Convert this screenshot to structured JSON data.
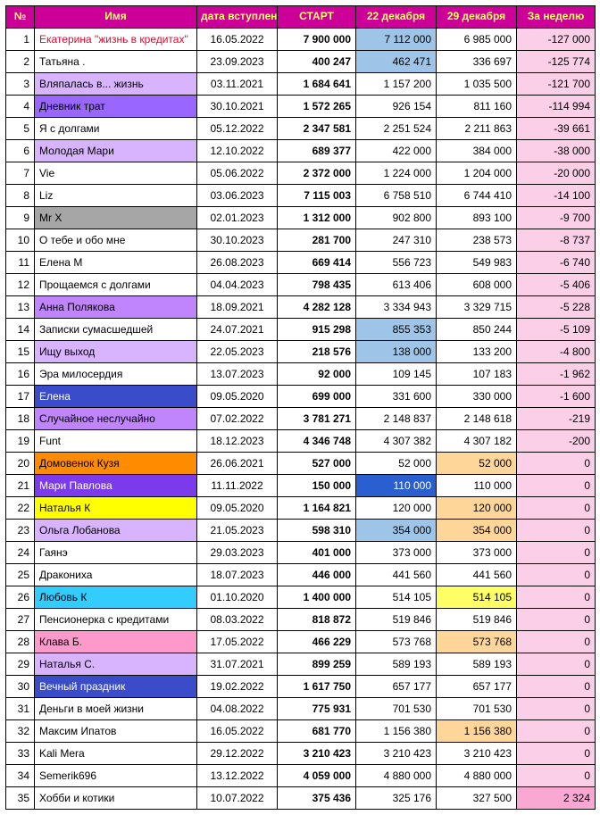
{
  "header": {
    "num": "№",
    "name": "Имя",
    "date": "дата вступления",
    "start": "СТАРТ",
    "d22": "22 декабря",
    "d29": "29 декабря",
    "week": "За неделю",
    "bg": "#cc0099",
    "fg": "#ffff66"
  },
  "palette": {
    "week_col_bg": "#fbcfe8",
    "hl_blue_light": "#9ec5e8",
    "hl_blue_med": "#5b8fd6",
    "hl_blue_strong": "#2a5fd0",
    "hl_orange": "#ffd699",
    "hl_yellow": "#ffff66",
    "hl_pink": "#f9a8d4"
  },
  "name_colors": {
    "red_text": "#e2062c",
    "lav_light": "#d8b4fe",
    "lav_med": "#c084fc",
    "violet": "#9966ff",
    "violet_dark": "#7c3aed",
    "blue_royal": "#3b4cca",
    "gray": "#a6a6a6",
    "orange": "#ff8c00",
    "yellow": "#ffff00",
    "cyan": "#33ccff",
    "pink": "#ff99cc"
  },
  "rows": [
    {
      "n": 1,
      "name": "Екатерина \"жизнь в кредитах\"",
      "name_bg": null,
      "name_fg": "#e2062c",
      "date": "16.05.2022",
      "start": "7 900 000",
      "d22": "7 112 000",
      "d22_bg": "#9ec5e8",
      "d29": "6 985 000",
      "d29_bg": null,
      "week": "-127 000"
    },
    {
      "n": 2,
      "name": "Татьяна .",
      "name_bg": null,
      "name_fg": null,
      "date": "23.09.2023",
      "start": "400 247",
      "d22": "462 471",
      "d22_bg": "#9ec5e8",
      "d29": "336 697",
      "d29_bg": null,
      "week": "-125 774"
    },
    {
      "n": 3,
      "name": "Вляпалась в... жизнь",
      "name_bg": "#d8b4fe",
      "name_fg": null,
      "date": "03.11.2021",
      "start": "1 684 641",
      "d22": "1 157 200",
      "d22_bg": null,
      "d29": "1 035 500",
      "d29_bg": null,
      "week": "-121 700"
    },
    {
      "n": 4,
      "name": "Дневник трат",
      "name_bg": "#9966ff",
      "name_fg": null,
      "date": "30.10.2021",
      "start": "1 572 265",
      "d22": "926 154",
      "d22_bg": null,
      "d29": "811 160",
      "d29_bg": null,
      "week": "-114 994"
    },
    {
      "n": 5,
      "name": "Я с долгами",
      "name_bg": null,
      "name_fg": null,
      "date": "05.12.2022",
      "start": "2 347 581",
      "d22": "2 251 524",
      "d22_bg": null,
      "d29": "2 211 863",
      "d29_bg": null,
      "week": "-39 661"
    },
    {
      "n": 6,
      "name": "Молодая Мари",
      "name_bg": "#d8b4fe",
      "name_fg": null,
      "date": "12.10.2022",
      "start": "689 377",
      "d22": "422 000",
      "d22_bg": null,
      "d29": "384 000",
      "d29_bg": null,
      "week": "-38 000"
    },
    {
      "n": 7,
      "name": "Vie",
      "name_bg": null,
      "name_fg": null,
      "date": "05.06.2022",
      "start": "2 372 000",
      "d22": "1 224 000",
      "d22_bg": null,
      "d29": "1 204 000",
      "d29_bg": null,
      "week": "-20 000"
    },
    {
      "n": 8,
      "name": "Liz",
      "name_bg": null,
      "name_fg": null,
      "date": "03.06.2023",
      "start": "7 115 003",
      "d22": "6 758 510",
      "d22_bg": null,
      "d29": "6 744 410",
      "d29_bg": null,
      "week": "-14 100"
    },
    {
      "n": 9,
      "name": "Mr X",
      "name_bg": "#a6a6a6",
      "name_fg": null,
      "date": "02.01.2023",
      "start": "1 312 000",
      "d22": "902 800",
      "d22_bg": null,
      "d29": "893 100",
      "d29_bg": null,
      "week": "-9 700"
    },
    {
      "n": 10,
      "name": "О тебе и обо мне",
      "name_bg": null,
      "name_fg": null,
      "date": "30.10.2023",
      "start": "281 700",
      "d22": "247 310",
      "d22_bg": null,
      "d29": "238 573",
      "d29_bg": null,
      "week": "-8 737"
    },
    {
      "n": 11,
      "name": "Елена М",
      "name_bg": null,
      "name_fg": null,
      "date": "26.08.2023",
      "start": "669 414",
      "d22": "556 723",
      "d22_bg": null,
      "d29": "549 983",
      "d29_bg": null,
      "week": "-6 740"
    },
    {
      "n": 12,
      "name": "Прощаемся с долгами",
      "name_bg": null,
      "name_fg": null,
      "date": "04.04.2023",
      "start": "798 435",
      "d22": "613 406",
      "d22_bg": null,
      "d29": "608 000",
      "d29_bg": null,
      "week": "-5 406"
    },
    {
      "n": 13,
      "name": "Анна Полякова",
      "name_bg": "#c084fc",
      "name_fg": null,
      "date": "18.09.2021",
      "start": "4 282 128",
      "d22": "3 334 943",
      "d22_bg": null,
      "d29": "3 329 715",
      "d29_bg": null,
      "week": "-5 228"
    },
    {
      "n": 14,
      "name": "Записки сумасшедшей",
      "name_bg": null,
      "name_fg": null,
      "date": "24.07.2021",
      "start": "915 298",
      "d22": "855 353",
      "d22_bg": "#9ec5e8",
      "d29": "850 244",
      "d29_bg": null,
      "week": "-5 109"
    },
    {
      "n": 15,
      "name": "Ищу выход",
      "name_bg": "#d8b4fe",
      "name_fg": null,
      "date": "22.05.2023",
      "start": "218 576",
      "d22": "138 000",
      "d22_bg": "#9ec5e8",
      "d29": "133 200",
      "d29_bg": null,
      "week": "-4 800"
    },
    {
      "n": 16,
      "name": "Эра милосердия",
      "name_bg": null,
      "name_fg": null,
      "date": "13.07.2023",
      "start": "92 000",
      "d22": "109 145",
      "d22_bg": null,
      "d29": "107 183",
      "d29_bg": null,
      "week": "-1 962"
    },
    {
      "n": 17,
      "name": "Елена",
      "name_bg": "#3b4cca",
      "name_fg": "#ffffff",
      "date": "09.05.2020",
      "start": "699 000",
      "d22": "331 600",
      "d22_bg": null,
      "d29": "330 000",
      "d29_bg": null,
      "week": "-1 600"
    },
    {
      "n": 18,
      "name": "Случайное неслучайно",
      "name_bg": "#c084fc",
      "name_fg": null,
      "date": "07.02.2022",
      "start": "3 781 271",
      "d22": "2 148 837",
      "d22_bg": null,
      "d29": "2 148 618",
      "d29_bg": null,
      "week": "-219"
    },
    {
      "n": 19,
      "name": "Funt",
      "name_bg": null,
      "name_fg": null,
      "date": "18.12.2023",
      "start": "4 346 748",
      "d22": "4 307 382",
      "d22_bg": null,
      "d29": "4 307 182",
      "d29_bg": null,
      "week": "-200"
    },
    {
      "n": 20,
      "name": "Домовенок Кузя",
      "name_bg": "#ff8c00",
      "name_fg": null,
      "date": "26.06.2021",
      "start": "527 000",
      "d22": "52 000",
      "d22_bg": null,
      "d29": "52 000",
      "d29_bg": "#ffd699",
      "week": "0"
    },
    {
      "n": 21,
      "name": "Мари Павлова",
      "name_bg": "#7c3aed",
      "name_fg": "#ffffff",
      "date": "11.11.2022",
      "start": "150 000",
      "d22": "110 000",
      "d22_bg": "#2a5fd0",
      "d22_fg": "#ffffff",
      "d29": "110 000",
      "d29_bg": null,
      "week": "0"
    },
    {
      "n": 22,
      "name": "Наталья К",
      "name_bg": "#ffff00",
      "name_fg": null,
      "date": "09.05.2020",
      "start": "1 164 821",
      "d22": "120 000",
      "d22_bg": null,
      "d29": "120 000",
      "d29_bg": "#ffd699",
      "week": "0"
    },
    {
      "n": 23,
      "name": "Ольга Лобанова",
      "name_bg": "#d8b4fe",
      "name_fg": null,
      "date": "21.05.2023",
      "start": "598 310",
      "d22": "354 000",
      "d22_bg": "#9ec5e8",
      "d29": "354 000",
      "d29_bg": "#ffd699",
      "week": "0"
    },
    {
      "n": 24,
      "name": "Гаянэ",
      "name_bg": null,
      "name_fg": null,
      "date": "29.03.2023",
      "start": "401 000",
      "d22": "373 000",
      "d22_bg": null,
      "d29": "373 000",
      "d29_bg": null,
      "week": "0"
    },
    {
      "n": 25,
      "name": "Дракониха",
      "name_bg": null,
      "name_fg": null,
      "date": "18.07.2023",
      "start": "446 000",
      "d22": "441 560",
      "d22_bg": null,
      "d29": "441 560",
      "d29_bg": null,
      "week": "0"
    },
    {
      "n": 26,
      "name": "Любовь К",
      "name_bg": "#33ccff",
      "name_fg": null,
      "date": "01.10.2020",
      "start": "1 400 000",
      "d22": "514 105",
      "d22_bg": null,
      "d29": "514 105",
      "d29_bg": "#ffff66",
      "week": "0"
    },
    {
      "n": 27,
      "name": "Пенсионерка с кредитами",
      "name_bg": null,
      "name_fg": null,
      "date": "08.03.2022",
      "start": "818 872",
      "d22": "519 846",
      "d22_bg": null,
      "d29": "519 846",
      "d29_bg": null,
      "week": "0"
    },
    {
      "n": 28,
      "name": "Клава Б.",
      "name_bg": "#ff99cc",
      "name_fg": null,
      "date": "17.05.2022",
      "start": "466 229",
      "d22": "573 768",
      "d22_bg": null,
      "d29": "573 768",
      "d29_bg": "#ffd699",
      "week": "0"
    },
    {
      "n": 29,
      "name": "Наталья С.",
      "name_bg": "#d8b4fe",
      "name_fg": null,
      "date": "31.07.2021",
      "start": "899 259",
      "d22": "589 193",
      "d22_bg": null,
      "d29": "589 193",
      "d29_bg": null,
      "week": "0"
    },
    {
      "n": 30,
      "name": "Вечный праздник",
      "name_bg": "#3b4cca",
      "name_fg": "#ffffff",
      "date": "19.02.2022",
      "start": "1 617 750",
      "d22": "657 177",
      "d22_bg": null,
      "d29": "657 177",
      "d29_bg": null,
      "week": "0"
    },
    {
      "n": 31,
      "name": "Деньги в моей жизни",
      "name_bg": null,
      "name_fg": null,
      "date": "04.08.2022",
      "start": "775 931",
      "d22": "701 530",
      "d22_bg": null,
      "d29": "701 530",
      "d29_bg": null,
      "week": "0"
    },
    {
      "n": 32,
      "name": "Максим Ипатов",
      "name_bg": null,
      "name_fg": null,
      "date": "16.05.2022",
      "start": "681 770",
      "d22": "1 156 380",
      "d22_bg": null,
      "d29": "1 156 380",
      "d29_bg": "#ffd699",
      "week": "0"
    },
    {
      "n": 33,
      "name": "Kali Mera",
      "name_bg": null,
      "name_fg": null,
      "date": "29.12.2022",
      "start": "3 210 423",
      "d22": "3 210 423",
      "d22_bg": null,
      "d29": "3 210 423",
      "d29_bg": null,
      "week": "0"
    },
    {
      "n": 34,
      "name": "Semerik696",
      "name_bg": null,
      "name_fg": null,
      "date": "13.12.2022",
      "start": "4 059 000",
      "d22": "4 880 000",
      "d22_bg": null,
      "d29": "4 880 000",
      "d29_bg": null,
      "week": "0"
    },
    {
      "n": 35,
      "name": "Хобби и котики",
      "name_bg": null,
      "name_fg": null,
      "date": "10.07.2022",
      "start": "375 436",
      "d22": "325 176",
      "d22_bg": null,
      "d29": "327 500",
      "d29_bg": null,
      "week": "2 324",
      "week_bg": "#f9a8d4"
    }
  ]
}
